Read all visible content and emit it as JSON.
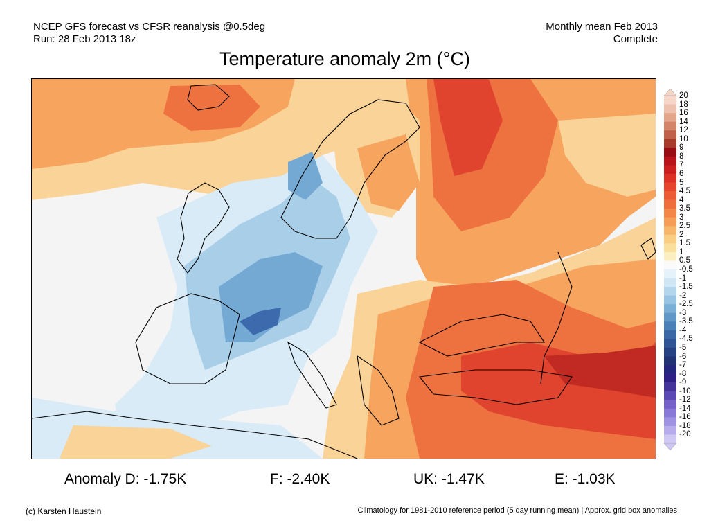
{
  "header": {
    "line1_left": "NCEP GFS forecast vs CFSR reanalysis @0.5deg",
    "line2_left": "Run: 28 Feb 2013 18z",
    "line1_right": "Monthly mean Feb 2013",
    "line2_right": "Complete"
  },
  "title": "Temperature anomaly 2m (°C)",
  "colorbar": {
    "labels": [
      "20",
      "18",
      "16",
      "14",
      "12",
      "10",
      "9",
      "8",
      "7",
      "6",
      "5",
      "4.5",
      "4",
      "3.5",
      "3",
      "2.5",
      "2",
      "1.5",
      "1",
      "0.5",
      "-0.5",
      "-1",
      "-1.5",
      "-2",
      "-2.5",
      "-3",
      "-3.5",
      "-4",
      "-4.5",
      "-5",
      "-6",
      "-7",
      "-8",
      "-9",
      "-10",
      "-12",
      "-14",
      "-16",
      "-18",
      "-20"
    ],
    "colors": [
      "#f6d6c8",
      "#eec0ae",
      "#e3a68c",
      "#d48468",
      "#c0604a",
      "#a83a2c",
      "#9a0c14",
      "#b8121a",
      "#cc1e1e",
      "#dc3024",
      "#e6452c",
      "#ec5a34",
      "#f06e3c",
      "#f48648",
      "#f69e58",
      "#f8b66a",
      "#f9cd82",
      "#fadf9c",
      "#fbefc2",
      "#fafafa",
      "#e6f2fa",
      "#d0e6f4",
      "#b4d6ec",
      "#96c4e2",
      "#7ab0d6",
      "#6098c8",
      "#4a80b8",
      "#3a68a6",
      "#2f5494",
      "#264283",
      "#203272",
      "#24257c",
      "#2e1f86",
      "#45339c",
      "#5c48b4",
      "#7460c8",
      "#8a78d8",
      "#a092e2",
      "#b8acec",
      "#cfc8f4"
    ],
    "top_triangle_color": "#f6d6c8",
    "bottom_triangle_color": "#cfc8f4"
  },
  "stats": {
    "d": "Anomaly D: -1.75K",
    "f": "F: -2.40K",
    "uk": "UK: -1.47K",
    "e": "E: -1.03K"
  },
  "footer": {
    "copyright": "(c) Karsten Haustein",
    "climatology_note": "Climatology for 1981-2010 reference period (5 day running mean) | Approx. grid box anomalies"
  },
  "map": {
    "background_color": "#f4f4f4",
    "colors": {
      "warm_light": "#f9d398",
      "warm_mid": "#f6a45e",
      "warm_strong": "#ee7140",
      "warm_hot": "#e0442e",
      "warm_extreme": "#c02a22",
      "cool_light": "#d8ebf7",
      "cool_mid": "#a9cfe8",
      "cool_strong": "#74a9d4",
      "cool_deep": "#3c6aad",
      "coast": "#000000"
    }
  }
}
